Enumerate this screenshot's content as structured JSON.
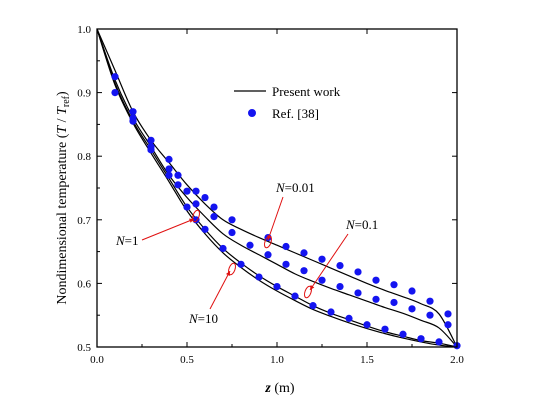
{
  "chart_data": {
    "type": "line",
    "xlabel_var": "z",
    "xlabel_unit": " (m)",
    "ylabel": "Nondimensional temperature (",
    "ylabel_T": "T",
    "ylabel_div": " / ",
    "ylabel_Tref": "T",
    "ylabel_ref_sub": "ref",
    "ylabel_close": ")",
    "xlim": [
      0.0,
      2.0
    ],
    "ylim": [
      0.5,
      1.0
    ],
    "xticks": [
      0.0,
      0.5,
      1.0,
      1.5,
      2.0
    ],
    "xtick_labels": [
      "0.0",
      "0.5",
      "1.0",
      "1.5",
      "2.0"
    ],
    "yticks": [
      0.5,
      0.6,
      0.7,
      0.8,
      0.9,
      1.0
    ],
    "ytick_labels": [
      "0.5",
      "0.6",
      "0.7",
      "0.8",
      "0.9",
      "1.0"
    ],
    "legend": [
      {
        "label": "Present work",
        "marker": "line"
      },
      {
        "label": "Ref. [38]",
        "marker": "circle"
      }
    ],
    "legend_position": "top-right",
    "series": [
      {
        "name": "N=0.01",
        "present_work": [
          [
            0.0,
            1.0
          ],
          [
            0.1,
            0.935
          ],
          [
            0.2,
            0.87
          ],
          [
            0.3,
            0.825
          ],
          [
            0.4,
            0.79
          ],
          [
            0.5,
            0.755
          ],
          [
            0.6,
            0.725
          ],
          [
            0.7,
            0.7
          ],
          [
            0.8,
            0.685
          ],
          [
            0.9,
            0.672
          ],
          [
            1.0,
            0.66
          ],
          [
            1.1,
            0.648
          ],
          [
            1.2,
            0.636
          ],
          [
            1.3,
            0.624
          ],
          [
            1.4,
            0.612
          ],
          [
            1.5,
            0.6
          ],
          [
            1.6,
            0.589
          ],
          [
            1.7,
            0.579
          ],
          [
            1.8,
            0.568
          ],
          [
            1.9,
            0.552
          ],
          [
            2.0,
            0.5
          ]
        ],
        "ref38": [
          [
            0.1,
            0.925
          ],
          [
            0.2,
            0.87
          ],
          [
            0.3,
            0.825
          ],
          [
            0.4,
            0.795
          ],
          [
            0.45,
            0.77
          ],
          [
            0.55,
            0.745
          ],
          [
            0.6,
            0.735
          ],
          [
            0.65,
            0.72
          ],
          [
            0.75,
            0.7
          ],
          [
            0.95,
            0.672
          ],
          [
            1.05,
            0.658
          ],
          [
            1.15,
            0.648
          ],
          [
            1.25,
            0.638
          ],
          [
            1.35,
            0.628
          ],
          [
            1.45,
            0.618
          ],
          [
            1.55,
            0.605
          ],
          [
            1.65,
            0.598
          ],
          [
            1.75,
            0.588
          ],
          [
            1.85,
            0.572
          ],
          [
            1.95,
            0.552
          ]
        ]
      },
      {
        "name": "N=0.1",
        "present_work": [
          [
            0.0,
            1.0
          ],
          [
            0.1,
            0.92
          ],
          [
            0.2,
            0.86
          ],
          [
            0.3,
            0.815
          ],
          [
            0.4,
            0.77
          ],
          [
            0.5,
            0.735
          ],
          [
            0.6,
            0.705
          ],
          [
            0.7,
            0.678
          ],
          [
            0.8,
            0.66
          ],
          [
            0.9,
            0.645
          ],
          [
            1.0,
            0.63
          ],
          [
            1.1,
            0.615
          ],
          [
            1.2,
            0.603
          ],
          [
            1.3,
            0.592
          ],
          [
            1.4,
            0.582
          ],
          [
            1.5,
            0.572
          ],
          [
            1.6,
            0.562
          ],
          [
            1.7,
            0.553
          ],
          [
            1.8,
            0.542
          ],
          [
            1.9,
            0.53
          ],
          [
            2.0,
            0.5
          ]
        ],
        "ref38": [
          [
            0.1,
            0.9
          ],
          [
            0.2,
            0.86
          ],
          [
            0.3,
            0.815
          ],
          [
            0.4,
            0.78
          ],
          [
            0.45,
            0.755
          ],
          [
            0.5,
            0.745
          ],
          [
            0.55,
            0.725
          ],
          [
            0.65,
            0.705
          ],
          [
            0.75,
            0.68
          ],
          [
            0.85,
            0.66
          ],
          [
            0.95,
            0.645
          ],
          [
            1.05,
            0.63
          ],
          [
            1.15,
            0.62
          ],
          [
            1.25,
            0.605
          ],
          [
            1.35,
            0.595
          ],
          [
            1.45,
            0.585
          ],
          [
            1.55,
            0.575
          ],
          [
            1.65,
            0.57
          ],
          [
            1.75,
            0.56
          ],
          [
            1.85,
            0.55
          ],
          [
            1.95,
            0.535
          ]
        ]
      },
      {
        "name": "N=1",
        "present_work": [
          [
            0.0,
            1.0
          ],
          [
            0.1,
            0.915
          ],
          [
            0.2,
            0.855
          ],
          [
            0.3,
            0.81
          ],
          [
            0.4,
            0.765
          ],
          [
            0.5,
            0.72
          ],
          [
            0.6,
            0.685
          ],
          [
            0.7,
            0.655
          ],
          [
            0.8,
            0.632
          ],
          [
            0.9,
            0.612
          ],
          [
            1.0,
            0.595
          ],
          [
            1.1,
            0.58
          ],
          [
            1.2,
            0.565
          ],
          [
            1.3,
            0.553
          ],
          [
            1.4,
            0.543
          ],
          [
            1.5,
            0.533
          ],
          [
            1.6,
            0.524
          ],
          [
            1.7,
            0.517
          ],
          [
            1.8,
            0.51
          ],
          [
            1.9,
            0.506
          ],
          [
            2.0,
            0.5
          ]
        ],
        "ref38": [
          [
            0.2,
            0.855
          ],
          [
            0.3,
            0.81
          ],
          [
            0.4,
            0.77
          ],
          [
            0.5,
            0.72
          ],
          [
            0.55,
            0.7
          ],
          [
            0.6,
            0.685
          ],
          [
            0.7,
            0.655
          ],
          [
            0.8,
            0.63
          ],
          [
            0.9,
            0.61
          ],
          [
            1.0,
            0.595
          ],
          [
            1.1,
            0.58
          ],
          [
            1.2,
            0.565
          ],
          [
            1.3,
            0.555
          ],
          [
            1.4,
            0.545
          ],
          [
            1.5,
            0.535
          ],
          [
            1.6,
            0.528
          ],
          [
            1.7,
            0.52
          ],
          [
            1.8,
            0.513
          ],
          [
            1.9,
            0.508
          ],
          [
            2.0,
            0.502
          ]
        ]
      },
      {
        "name": "N=10",
        "present_work": [
          [
            0.0,
            1.0
          ],
          [
            0.1,
            0.912
          ],
          [
            0.2,
            0.852
          ],
          [
            0.3,
            0.805
          ],
          [
            0.4,
            0.76
          ],
          [
            0.5,
            0.714
          ],
          [
            0.6,
            0.678
          ],
          [
            0.7,
            0.648
          ],
          [
            0.8,
            0.625
          ],
          [
            0.9,
            0.605
          ],
          [
            1.0,
            0.588
          ],
          [
            1.1,
            0.573
          ],
          [
            1.2,
            0.559
          ],
          [
            1.3,
            0.548
          ],
          [
            1.4,
            0.538
          ],
          [
            1.5,
            0.529
          ],
          [
            1.6,
            0.521
          ],
          [
            1.7,
            0.514
          ],
          [
            1.8,
            0.508
          ],
          [
            1.9,
            0.503
          ],
          [
            2.0,
            0.5
          ]
        ],
        "ref38": []
      }
    ],
    "annotations": [
      {
        "pre": "",
        "italic": "N",
        "post": "=0.01"
      },
      {
        "pre": "",
        "italic": "N",
        "post": "=0.1"
      },
      {
        "pre": "",
        "italic": "N",
        "post": "=1"
      },
      {
        "pre": "",
        "italic": "N",
        "post": "=10"
      }
    ],
    "colors": {
      "ref_points": "#1414f0",
      "lines": "#000000",
      "annotation_arrows": "#e01010"
    }
  }
}
